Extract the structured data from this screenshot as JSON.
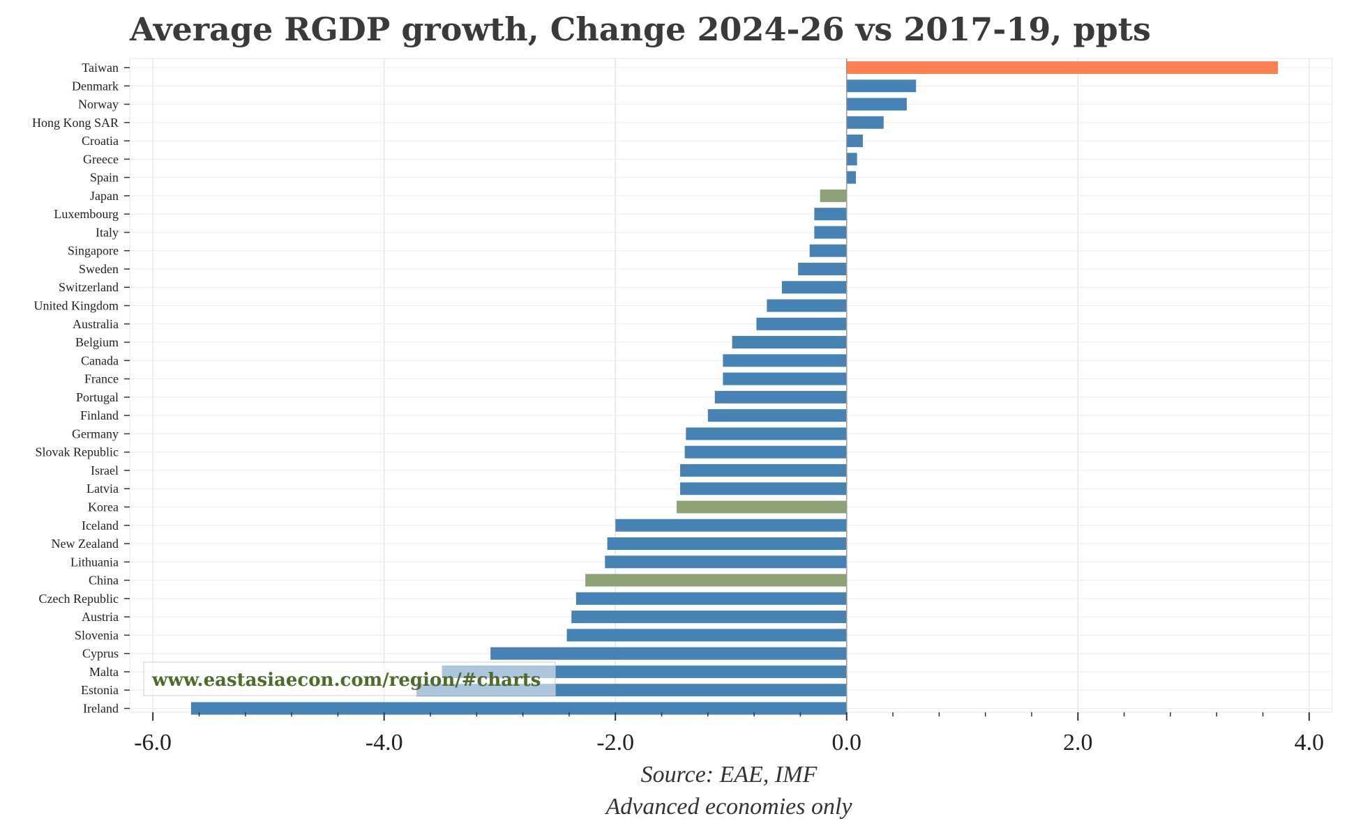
{
  "chart_data": {
    "type": "bar",
    "orientation": "horizontal",
    "title": "Average RGDP growth, Change 2024-26 vs 2017-19, ppts",
    "xlim": [
      -6.2,
      4.2
    ],
    "xticks": [
      -6.0,
      -4.0,
      -2.0,
      0.0,
      2.0,
      4.0
    ],
    "xtick_labels": [
      "-6.0",
      "-4.0",
      "-2.0",
      "0.0",
      "2.0",
      "4.0"
    ],
    "grid": true,
    "colors": {
      "default": "#4682b4",
      "highlight_taiwan": "#ff7f50",
      "highlight_peer": "#8fa276"
    },
    "categories": [
      "Taiwan",
      "Denmark",
      "Norway",
      "Hong Kong SAR",
      "Croatia",
      "Greece",
      "Spain",
      "Japan",
      "Luxembourg",
      "Italy",
      "Singapore",
      "Sweden",
      "Switzerland",
      "United Kingdom",
      "Australia",
      "Belgium",
      "Canada",
      "France",
      "Portugal",
      "Finland",
      "Germany",
      "Slovak Republic",
      "Israel",
      "Latvia",
      "Korea",
      "Iceland",
      "New Zealand",
      "Lithuania",
      "China",
      "Czech Republic",
      "Austria",
      "Slovenia",
      "Cyprus",
      "Malta",
      "Estonia",
      "Ireland"
    ],
    "values": [
      3.73,
      0.6,
      0.52,
      0.32,
      0.14,
      0.09,
      0.08,
      -0.23,
      -0.28,
      -0.28,
      -0.32,
      -0.42,
      -0.56,
      -0.69,
      -0.78,
      -0.99,
      -1.07,
      -1.07,
      -1.14,
      -1.2,
      -1.39,
      -1.4,
      -1.44,
      -1.44,
      -1.47,
      -2.0,
      -2.07,
      -2.09,
      -2.26,
      -2.34,
      -2.38,
      -2.42,
      -3.08,
      -3.5,
      -3.72,
      -5.67
    ],
    "bar_colors": [
      "highlight_taiwan",
      "default",
      "default",
      "default",
      "default",
      "default",
      "default",
      "highlight_peer",
      "default",
      "default",
      "default",
      "default",
      "default",
      "default",
      "default",
      "default",
      "default",
      "default",
      "default",
      "default",
      "default",
      "default",
      "default",
      "default",
      "highlight_peer",
      "default",
      "default",
      "default",
      "highlight_peer",
      "default",
      "default",
      "default",
      "default",
      "default",
      "default",
      "default"
    ],
    "captions": [
      "Source: EAE, IMF",
      "Advanced economies only"
    ],
    "watermark": "www.eastasiaecon.com/region/#charts"
  }
}
